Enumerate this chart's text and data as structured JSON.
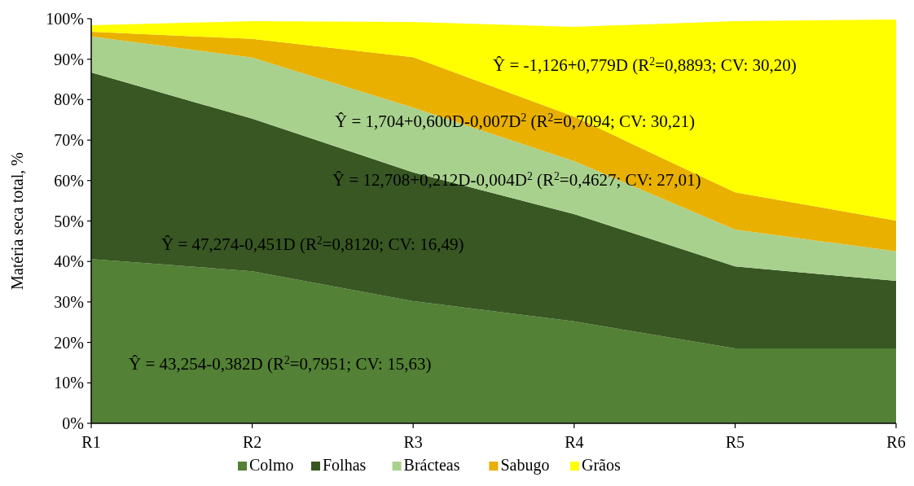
{
  "chart_data": {
    "type": "area",
    "stacked": true,
    "categories": [
      "R1",
      "R2",
      "R3",
      "R4",
      "R5",
      "R6"
    ],
    "series": [
      {
        "name": "Colmo",
        "color": "#538135",
        "values": [
          40.6,
          37.6,
          30.2,
          25.2,
          18.5,
          18.5
        ]
      },
      {
        "name": "Folhas",
        "color": "#385723",
        "values": [
          46.1,
          37.7,
          31.8,
          26.5,
          20.3,
          16.7
        ]
      },
      {
        "name": "Brácteas",
        "color": "#a9d18e",
        "values": [
          8.9,
          15.1,
          16.0,
          13.1,
          9.1,
          7.3
        ]
      },
      {
        "name": "Sabugo",
        "color": "#e9b000",
        "values": [
          1.2,
          4.6,
          12.5,
          11.0,
          9.2,
          7.6
        ]
      },
      {
        "name": "Grãos",
        "color": "#ffff00",
        "values": [
          1.6,
          4.4,
          8.7,
          22.2,
          42.3,
          49.7
        ]
      }
    ],
    "ylim": [
      0,
      100
    ],
    "yticks": [
      {
        "value": 0,
        "label": "0%"
      },
      {
        "value": 10,
        "label": "10%"
      },
      {
        "value": 20,
        "label": "20%"
      },
      {
        "value": 30,
        "label": "30%"
      },
      {
        "value": 40,
        "label": "40%"
      },
      {
        "value": 50,
        "label": "50%"
      },
      {
        "value": 60,
        "label": "60%"
      },
      {
        "value": 70,
        "label": "70%"
      },
      {
        "value": 80,
        "label": "80%"
      },
      {
        "value": 90,
        "label": "90%"
      },
      {
        "value": 100,
        "label": "100%"
      }
    ],
    "ylabel": "Matéria seca total, %",
    "legend": "bottom",
    "annotations": [
      "Ŷ = -1,126+0,779D (R$^{2}$=0,8893; CV: 30,20)",
      "Ŷ = 1,704+0,600D-0,007D$^{2}$ (R$^{2}$=0,7094; CV: 30,21)",
      "Ŷ = 12,708+0,212D-0,004D$^{2}$ (R$^{2}$=0,4627; CV: 27,01)",
      "Ŷ = 47,274-0,451D (R$^{2}$=0,8120; CV: 16,49)",
      "Ŷ = 43,254-0,382D (R$^{2}$=0,7951; CV: 15,63)"
    ]
  }
}
